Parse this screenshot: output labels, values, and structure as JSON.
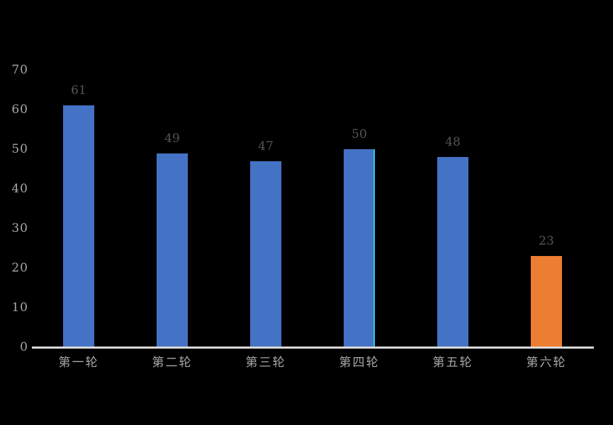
{
  "background_color": "#000000",
  "chart_data": {
    "type": "bar",
    "categories": [
      "第一轮",
      "第二轮",
      "第三轮",
      "第四轮",
      "第五轮",
      "第六轮"
    ],
    "values": [
      61,
      49,
      47,
      50,
      48,
      23
    ],
    "data_labels": [
      "61",
      "49",
      "47",
      "50",
      "48",
      "23"
    ],
    "bar_colors": [
      "#4472C4",
      "#4472C4",
      "#4472C4",
      "#4472C4",
      "#4472C4",
      "#ED7D31"
    ],
    "highlighted_index": 3,
    "highlight_edge_color": "#2BC9F4",
    "title": "",
    "xlabel": "",
    "ylabel": "",
    "ylim": [
      0,
      70
    ],
    "yticks": [
      "0",
      "10",
      "20",
      "30",
      "40",
      "50",
      "60",
      "70"
    ],
    "grid": false,
    "legend": null,
    "axis_line_color": "#D9D9D9",
    "ytick_label_color": "#A6A6A6",
    "data_label_color": "#555555",
    "category_label_color": "#A6A6A6"
  }
}
